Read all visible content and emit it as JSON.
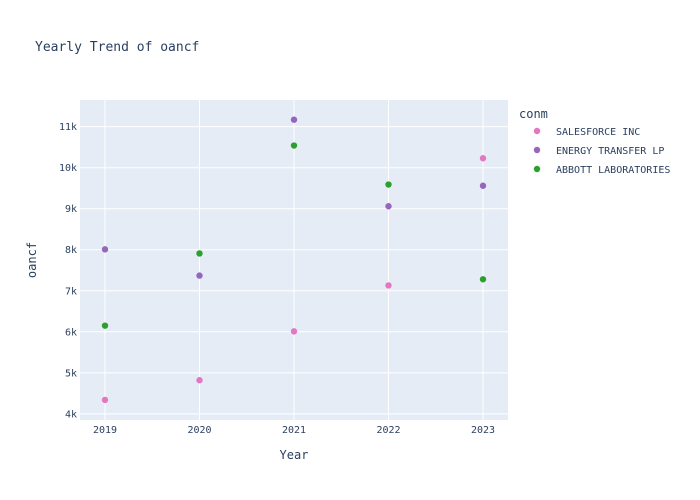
{
  "chart_data": {
    "type": "scatter",
    "title": "Yearly Trend of oancf",
    "xlabel": "Year",
    "ylabel": "oancf",
    "x": [
      2019,
      2020,
      2021,
      2022,
      2023
    ],
    "x_tick_labels": [
      "2019",
      "2020",
      "2021",
      "2022",
      "2023"
    ],
    "ylim": [
      3850,
      11650
    ],
    "y_ticks": [
      4000,
      5000,
      6000,
      7000,
      8000,
      9000,
      10000,
      11000
    ],
    "y_tick_labels": [
      "4k",
      "5k",
      "6k",
      "7k",
      "8k",
      "9k",
      "10k",
      "11k"
    ],
    "grid": true,
    "legend_title": "conm",
    "legend_position": "right",
    "series": [
      {
        "name": "SALESFORCE INC",
        "color": "#e377c2",
        "values": [
          4340,
          4820,
          6010,
          7130,
          10230
        ]
      },
      {
        "name": "ENERGY TRANSFER LP",
        "color": "#9467bd",
        "values": [
          8010,
          7370,
          11170,
          9060,
          9560
        ]
      },
      {
        "name": "ABBOTT LABORATORIES",
        "color": "#2ca02c",
        "values": [
          6150,
          7910,
          10540,
          9590,
          7280
        ]
      }
    ]
  }
}
